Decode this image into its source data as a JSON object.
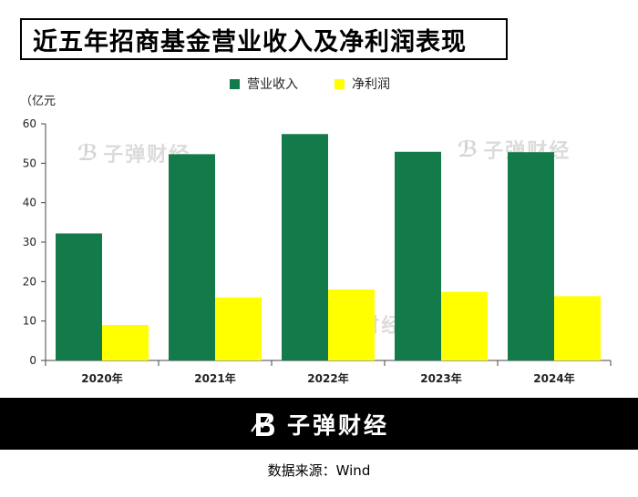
{
  "title": "近五年招商基金营业收入及净利润表现",
  "unit_label": "（亿元",
  "watermark_text": "子弹财经",
  "footer": {
    "brand": "子弹财经",
    "source": "数据来源：Wind"
  },
  "colors": {
    "revenue": "#137a4a",
    "profit": "#ffff00",
    "axis": "#444444"
  },
  "chart_data": {
    "type": "bar",
    "categories": [
      "2020年",
      "2021年",
      "2022年",
      "2023年",
      "2024年"
    ],
    "series": [
      {
        "name": "营业收入",
        "values": [
          32.2,
          52.3,
          57.4,
          52.9,
          52.8
        ]
      },
      {
        "name": "净利润",
        "values": [
          9.0,
          16.0,
          18.0,
          17.4,
          16.3
        ]
      }
    ],
    "yticks": [
      0,
      10,
      20,
      30,
      40,
      50,
      60
    ],
    "ylim": [
      0,
      60
    ],
    "xlabel": "",
    "ylabel": "",
    "legend_position": "top",
    "grid": false
  }
}
